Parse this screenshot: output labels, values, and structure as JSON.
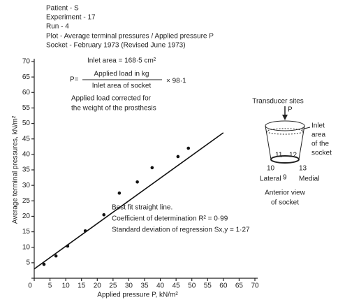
{
  "header": [
    "Patient - S",
    "Experiment - 17",
    "Run - 4",
    "Plot - Average terminal pressures / Applied pressure P",
    "Socket - February 1973 (Revised June 1973)"
  ],
  "inlet_area": "Inlet area = 168·5 cm²",
  "formula": {
    "lhs": "P=",
    "numerator": "Applied load in kg",
    "denominator": "Inlet area of socket",
    "factor": "× 98·1"
  },
  "correction_note": [
    "Applied load corrected for",
    "the weight of the prosthesis"
  ],
  "fit_note": [
    "Best fit straight line.",
    "Coefficient of determination R² = 0·99",
    "Standard deviation of regression Sx,y = 1·27"
  ],
  "diagram": {
    "title": "Transducer sites",
    "load": "P",
    "inlet": [
      "Inlet",
      "area",
      "of the",
      "socket"
    ],
    "sites": [
      "11",
      "12",
      "10",
      "9",
      "13"
    ],
    "lateral": "Lateral",
    "medial": "Medial",
    "caption": [
      "Anterior view",
      "of socket"
    ]
  },
  "chart_data": {
    "type": "scatter",
    "x_label": "Applied pressure P, kN/m²",
    "y_label": "Average terminal pressures, kN/m²",
    "x": [
      3.1,
      6.9,
      10.6,
      16.2,
      22.1,
      27,
      32.7,
      37.4,
      45.6,
      48.9
    ],
    "values": [
      4.5,
      7.2,
      10.4,
      15.3,
      20.5,
      27.5,
      31.1,
      35.7,
      39.3,
      42
    ],
    "fit_line": {
      "x": [
        0,
        60
      ],
      "y": [
        3,
        47
      ]
    },
    "color": "#111",
    "xlim": [
      0,
      70
    ],
    "ylim": [
      0,
      70
    ],
    "xticks": [
      0,
      5,
      10,
      15,
      20,
      25,
      30,
      35,
      40,
      45,
      50,
      55,
      60,
      65,
      70
    ],
    "yticks": [
      0,
      5,
      10,
      15,
      20,
      25,
      30,
      35,
      40,
      45,
      50,
      55,
      60,
      65,
      70
    ]
  }
}
